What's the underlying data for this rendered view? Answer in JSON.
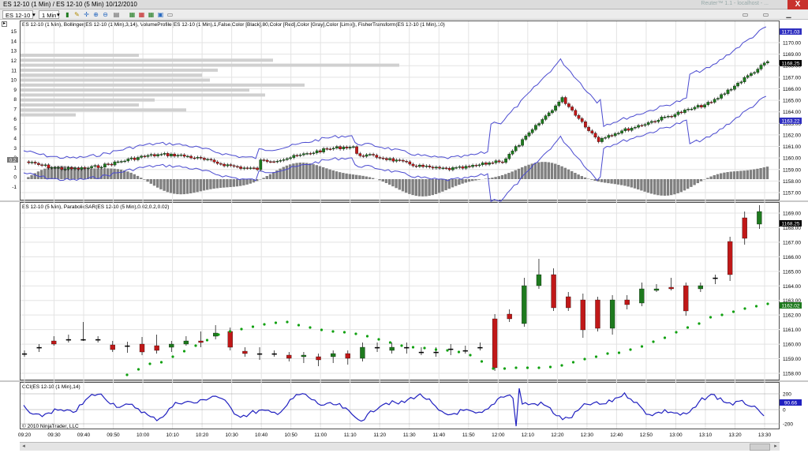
{
  "window": {
    "title": "ES 12-10 (1 Min) / ES 12-10 (5 Min)  10/12/2010",
    "ghost_text": "Reuter™ 1.1 - localhost - ...",
    "close_glyph": "X"
  },
  "toolbar": {
    "instrument": "ES 12-10",
    "interval": "1 Min",
    "icons": [
      "bar-chart-icon",
      "pencil-icon",
      "crosshair-icon",
      "zoom-in-icon",
      "zoom-out-icon",
      "properties-icon",
      "data-box-icon",
      "strategy-icon",
      "indicator-icon",
      "refresh-icon",
      "overlay-icon"
    ],
    "right_icons": [
      "window-left-icon",
      "window-right-icon",
      "minimize-icon"
    ]
  },
  "panels": {
    "panel1_label": "ES 12-10 (1 Min), Bollinger(ES 12-10 (1 Min),3,14), VolumeProfile(ES 12-10 (1 Min),1,False,Color [Black],80,Color [Red],Color [Gray],Color [Lime]), FisherTransform(ES 12-10 (1 Min),10)",
    "panel2_label": "ES 12-10 (5 Min), ParabolicSAR(ES 12-10 (5 Min),0.02,0.2,0.02)",
    "panel3_label": "CCI(ES 12-10 (1 Min),14)",
    "panel1_left_ticks": [
      "15",
      "14",
      "13",
      "12",
      "11",
      "10",
      "9",
      "8",
      "7",
      "6",
      "5",
      "4",
      "3",
      "2",
      "1",
      "0",
      "-1"
    ],
    "panel1_left_marker": "0.2",
    "panel1_right_ticks": [
      "1170.00",
      "1169.00",
      "1168.00",
      "1167.00",
      "1166.00",
      "1165.00",
      "1164.00",
      "1163.00",
      "1162.00",
      "1161.00",
      "1160.00",
      "1159.00",
      "1158.00",
      "1157.00"
    ],
    "panel2_right_ticks": [
      "1169.00",
      "1168.00",
      "1167.00",
      "1166.00",
      "1165.00",
      "1164.00",
      "1163.00",
      "1162.00",
      "1161.00",
      "1160.00",
      "1159.00",
      "1158.00"
    ],
    "panel3_right_ticks": [
      "200",
      "0",
      "-200"
    ],
    "price_tags": {
      "p1_upper": "1171.03",
      "p1_last": "1168.25",
      "p1_lower": "1163.22",
      "p2_last": "1168.25",
      "p2_sar": "1162.02",
      "p3_last": "90.66"
    },
    "time_labels": [
      "09:20",
      "09:30",
      "09:40",
      "09:50",
      "10:00",
      "10:10",
      "10:20",
      "10:30",
      "10:40",
      "10:50",
      "11:00",
      "11:10",
      "11:20",
      "11:30",
      "11:40",
      "11:50",
      "12:00",
      "12:10",
      "12:20",
      "12:30",
      "12:40",
      "12:50",
      "13:00",
      "13:10",
      "13:20",
      "13:30"
    ],
    "copyright": "© 2010 NinjaTrader, LLC"
  },
  "colors": {
    "up": "#1e7a1e",
    "down": "#c01818",
    "band": "#4a4ad0",
    "histogram": "#808080",
    "profile": "#d0d0d0",
    "cci": "#2020c0",
    "sar": "#10a010"
  }
}
